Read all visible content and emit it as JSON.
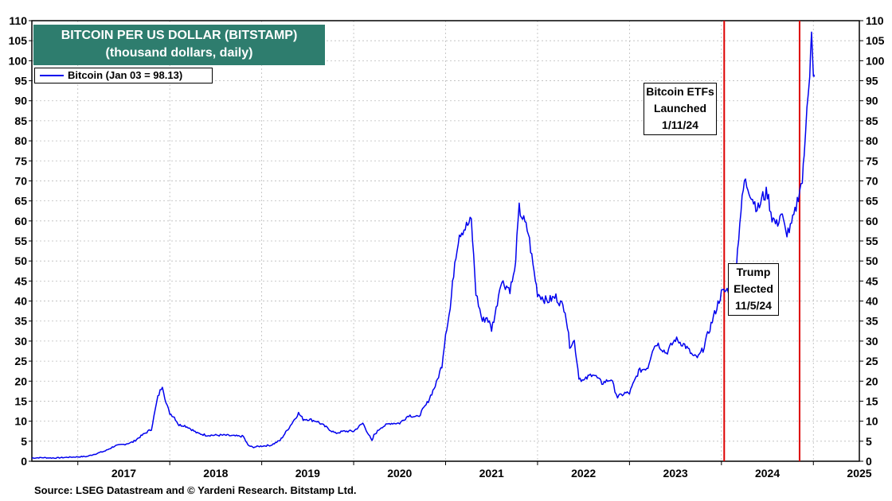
{
  "chart_data": {
    "type": "line",
    "title": "BITCOIN PER US DOLLAR (BITSTAMP)",
    "subtitle": "(thousand dollars, daily)",
    "legend": "Bitcoin (Jan 03 = 98.13)",
    "source": "Source: LSEG Datastream and © Yardeni Research. Bitstamp Ltd.",
    "ylim": [
      0,
      110
    ],
    "yticks": [
      0,
      5,
      10,
      15,
      20,
      25,
      30,
      35,
      40,
      45,
      50,
      55,
      60,
      65,
      70,
      75,
      80,
      85,
      90,
      95,
      100,
      105,
      110
    ],
    "xlim": [
      2016.5,
      2025.5
    ],
    "xtick_labels": [
      "2017",
      "2018",
      "2019",
      "2020",
      "2021",
      "2022",
      "2023",
      "2024",
      "2025"
    ],
    "series": [
      {
        "name": "Bitcoin",
        "color": "#0000ee",
        "x": [
          2016.5,
          2016.6,
          2016.75,
          2016.9,
          2017.0,
          2017.1,
          2017.2,
          2017.3,
          2017.4,
          2017.5,
          2017.6,
          2017.7,
          2017.8,
          2017.87,
          2017.92,
          2017.96,
          2018.0,
          2018.05,
          2018.1,
          2018.15,
          2018.2,
          2018.3,
          2018.4,
          2018.5,
          2018.6,
          2018.7,
          2018.8,
          2018.85,
          2018.9,
          2019.0,
          2019.1,
          2019.2,
          2019.3,
          2019.4,
          2019.45,
          2019.5,
          2019.6,
          2019.7,
          2019.8,
          2019.9,
          2020.0,
          2020.1,
          2020.2,
          2020.22,
          2020.3,
          2020.4,
          2020.5,
          2020.6,
          2020.7,
          2020.8,
          2020.9,
          2020.96,
          2021.0,
          2021.05,
          2021.1,
          2021.15,
          2021.2,
          2021.28,
          2021.33,
          2021.4,
          2021.45,
          2021.5,
          2021.55,
          2021.6,
          2021.7,
          2021.75,
          2021.8,
          2021.85,
          2021.9,
          2021.95,
          2022.0,
          2022.1,
          2022.2,
          2022.3,
          2022.35,
          2022.4,
          2022.45,
          2022.5,
          2022.6,
          2022.7,
          2022.8,
          2022.87,
          2022.95,
          2023.0,
          2023.1,
          2023.2,
          2023.25,
          2023.3,
          2023.4,
          2023.5,
          2023.6,
          2023.7,
          2023.75,
          2023.8,
          2023.9,
          2024.0,
          2024.05,
          2024.1,
          2024.15,
          2024.2,
          2024.25,
          2024.3,
          2024.35,
          2024.4,
          2024.45,
          2024.5,
          2024.55,
          2024.6,
          2024.65,
          2024.7,
          2024.75,
          2024.8,
          2024.85,
          2024.88,
          2024.9,
          2024.93,
          2024.96,
          2024.98,
          2025.0,
          2025.01
        ],
        "y": [
          0.8,
          0.9,
          0.8,
          1.0,
          1.1,
          1.2,
          1.9,
          2.6,
          3.8,
          4.2,
          4.8,
          6.5,
          8.0,
          16.0,
          19.0,
          14.5,
          12.0,
          11.0,
          9.0,
          9.0,
          8.5,
          7.0,
          6.5,
          6.5,
          6.5,
          6.3,
          6.2,
          4.0,
          3.5,
          3.8,
          4.0,
          5.2,
          8.5,
          12.0,
          10.5,
          10.5,
          10.0,
          8.5,
          7.0,
          7.5,
          7.5,
          9.5,
          5.0,
          6.5,
          8.5,
          9.5,
          9.5,
          11.5,
          11.0,
          14.5,
          19.5,
          24.0,
          32.0,
          38.0,
          50.0,
          57.0,
          58.0,
          60.0,
          42.0,
          35.0,
          36.0,
          33.0,
          38.0,
          45.0,
          43.0,
          47.0,
          63.0,
          60.0,
          57.0,
          49.0,
          42.0,
          40.0,
          41.0,
          38.0,
          29.0,
          30.0,
          21.0,
          20.0,
          22.0,
          19.5,
          20.5,
          16.0,
          17.0,
          17.0,
          22.5,
          23.5,
          28.0,
          29.5,
          27.0,
          30.5,
          29.0,
          26.0,
          26.0,
          28.0,
          35.0,
          42.0,
          42.5,
          43.5,
          45.0,
          60.0,
          70.0,
          68.0,
          65.0,
          63.0,
          66.0,
          67.0,
          61.0,
          59.0,
          62.0,
          57.0,
          58.0,
          62.0,
          68.0,
          70.0,
          76.0,
          90.0,
          97.0,
          106.0,
          95.0,
          96.0
        ]
      }
    ],
    "annotations": [
      {
        "x": 2024.03,
        "lines": [
          "Bitcoin ETFs",
          "Launched",
          "1/11/24"
        ],
        "color": "#dd0000"
      },
      {
        "x": 2024.85,
        "lines": [
          "Trump",
          "Elected",
          "11/5/24"
        ],
        "color": "#dd0000"
      }
    ]
  }
}
